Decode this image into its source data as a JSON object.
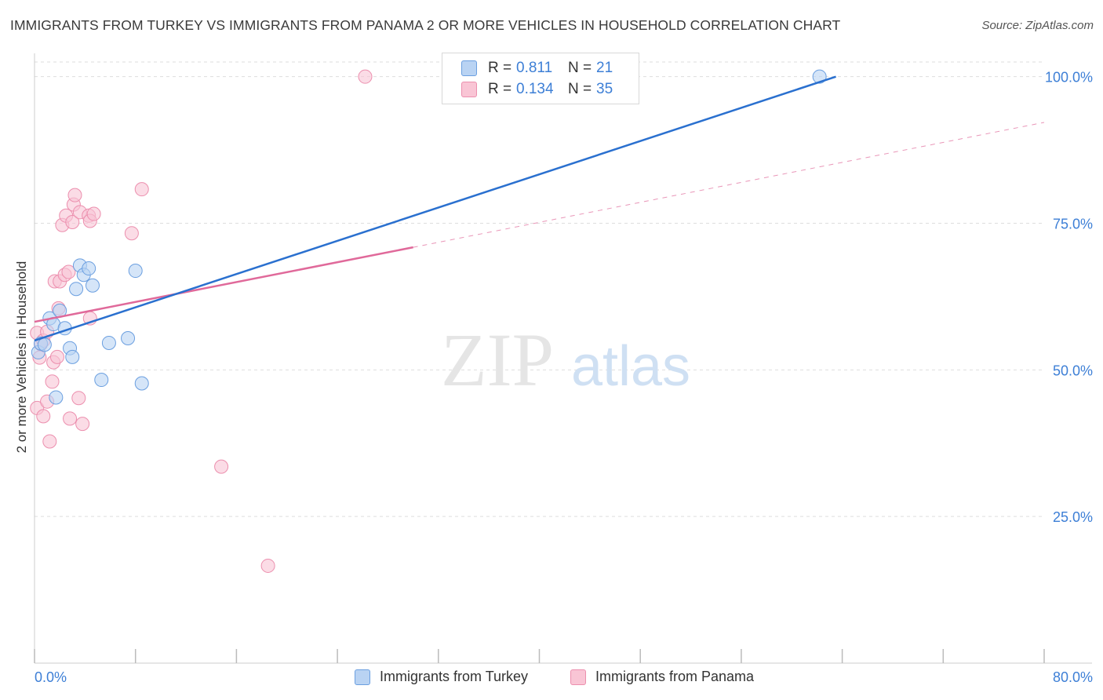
{
  "title": "IMMIGRANTS FROM TURKEY VS IMMIGRANTS FROM PANAMA 2 OR MORE VEHICLES IN HOUSEHOLD CORRELATION CHART",
  "source": "Source: ZipAtlas.com",
  "watermark": {
    "zip": "ZIP",
    "atlas": "atlas"
  },
  "legend": {
    "turkey": {
      "r_label": "R =",
      "r_value": "0.811",
      "n_label": "N =",
      "n_value": "21"
    },
    "panama": {
      "r_label": "R =",
      "r_value": "0.134",
      "n_label": "N =",
      "n_value": "35"
    }
  },
  "colors": {
    "turkey_fill": "#b9d3f3",
    "turkey_stroke": "#6b9fe0",
    "turkey_line": "#2a70cf",
    "panama_fill": "#f9c5d5",
    "panama_stroke": "#ec8fae",
    "panama_line": "#e0699a",
    "value_text": "#3d7fd6",
    "grid": "#dddddd"
  },
  "chart_data": {
    "type": "scatter",
    "title": "IMMIGRANTS FROM TURKEY VS IMMIGRANTS FROM PANAMA 2 OR MORE VEHICLES IN HOUSEHOLD CORRELATION CHART",
    "xlabel": "",
    "ylabel": "2 or more Vehicles in Household",
    "xlim": [
      0,
      80
    ],
    "ylim": [
      0,
      102.5
    ],
    "x_tick_labels": [
      "0.0%",
      "80.0%"
    ],
    "y_ticks": [
      25,
      50,
      75,
      100
    ],
    "y_tick_labels": [
      "25.0%",
      "50.0%",
      "75.0%",
      "100.0%"
    ],
    "grid": true,
    "legend_position": "bottom",
    "series": [
      {
        "name": "Immigrants from Turkey",
        "r": 0.811,
        "n": 21,
        "points": [
          [
            0.3,
            53.0
          ],
          [
            0.5,
            54.5
          ],
          [
            0.8,
            54.3
          ],
          [
            1.2,
            58.8
          ],
          [
            1.5,
            57.8
          ],
          [
            1.7,
            45.3
          ],
          [
            2.0,
            60.1
          ],
          [
            2.4,
            57.1
          ],
          [
            2.8,
            53.7
          ],
          [
            3.0,
            52.2
          ],
          [
            3.3,
            63.8
          ],
          [
            3.6,
            67.8
          ],
          [
            3.9,
            66.2
          ],
          [
            4.3,
            67.3
          ],
          [
            4.6,
            64.4
          ],
          [
            5.3,
            48.3
          ],
          [
            5.9,
            54.6
          ],
          [
            7.4,
            55.4
          ],
          [
            8.0,
            66.9
          ],
          [
            8.5,
            47.7
          ],
          [
            62.2,
            100.0
          ]
        ],
        "trend": {
          "x1": 0.0,
          "y1": 55.0,
          "x2": 63.5,
          "y2": 100.0
        }
      },
      {
        "name": "Immigrants from Panama",
        "r": 0.134,
        "n": 35,
        "points": [
          [
            0.2,
            56.3
          ],
          [
            0.2,
            43.5
          ],
          [
            0.4,
            52.1
          ],
          [
            0.5,
            54.4
          ],
          [
            0.7,
            55.0
          ],
          [
            0.7,
            42.1
          ],
          [
            1.0,
            56.5
          ],
          [
            1.0,
            44.6
          ],
          [
            1.2,
            37.8
          ],
          [
            1.4,
            48.0
          ],
          [
            1.5,
            51.3
          ],
          [
            1.6,
            65.1
          ],
          [
            1.8,
            52.2
          ],
          [
            1.9,
            60.5
          ],
          [
            2.0,
            65.1
          ],
          [
            2.2,
            74.7
          ],
          [
            2.4,
            66.2
          ],
          [
            2.5,
            76.3
          ],
          [
            2.7,
            66.7
          ],
          [
            2.8,
            41.7
          ],
          [
            3.0,
            75.2
          ],
          [
            3.1,
            78.2
          ],
          [
            3.2,
            79.8
          ],
          [
            3.5,
            45.2
          ],
          [
            3.6,
            76.9
          ],
          [
            3.8,
            40.8
          ],
          [
            4.3,
            76.3
          ],
          [
            4.4,
            75.4
          ],
          [
            4.4,
            58.8
          ],
          [
            4.7,
            76.6
          ],
          [
            7.7,
            73.3
          ],
          [
            8.5,
            80.8
          ],
          [
            14.8,
            33.5
          ],
          [
            18.5,
            16.6
          ],
          [
            26.2,
            100.0
          ]
        ],
        "trend": {
          "x1": 0.0,
          "y1": 58.2,
          "x2": 30.0,
          "y2": 70.9
        },
        "trend_extension": {
          "x1": 30.0,
          "y1": 70.9,
          "x2": 80.0,
          "y2": 92.2
        }
      }
    ]
  },
  "bottom_legend": {
    "turkey_label": "Immigrants from Turkey",
    "panama_label": "Immigrants from Panama"
  }
}
